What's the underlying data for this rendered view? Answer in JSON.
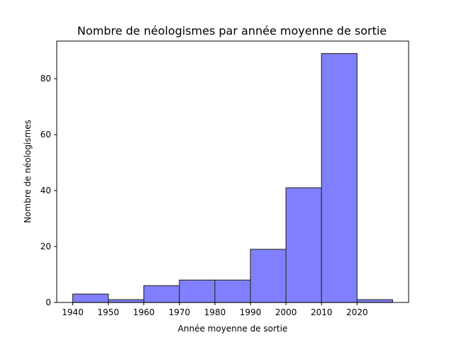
{
  "chart_data": {
    "type": "bar",
    "title": "Nombre de néologismes par année moyenne de sortie",
    "xlabel": "Année moyenne de sortie",
    "ylabel": "Nombre de néologismes",
    "bins": [
      {
        "start": 1940,
        "end": 1950,
        "value": 3
      },
      {
        "start": 1950,
        "end": 1960,
        "value": 1
      },
      {
        "start": 1960,
        "end": 1970,
        "value": 6
      },
      {
        "start": 1970,
        "end": 1980,
        "value": 8
      },
      {
        "start": 1980,
        "end": 1990,
        "value": 8
      },
      {
        "start": 1990,
        "end": 2000,
        "value": 19
      },
      {
        "start": 2000,
        "end": 2010,
        "value": 41
      },
      {
        "start": 2010,
        "end": 2020,
        "value": 89
      },
      {
        "start": 2020,
        "end": 2030,
        "value": 1
      }
    ],
    "xticks": [
      "1940",
      "1950",
      "1960",
      "1970",
      "1980",
      "1990",
      "2000",
      "2010",
      "2020"
    ],
    "yticks": [
      "0",
      "20",
      "40",
      "60",
      "80"
    ],
    "xlim": [
      1935.5,
      2034.5
    ],
    "ylim": [
      0,
      93.45
    ],
    "grid": false,
    "colors": {
      "fill": "#8080ff",
      "edge": "#333333"
    }
  }
}
